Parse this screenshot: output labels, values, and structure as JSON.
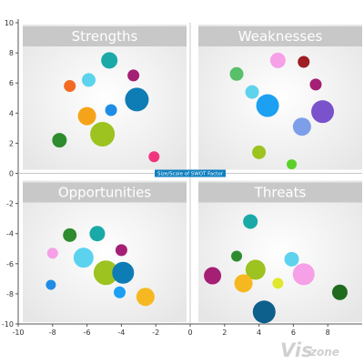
{
  "chart_data": {
    "type": "bubble",
    "center_label": "Size/Scale of SWOT Factor",
    "x_ticks": [
      -10,
      -8,
      -6,
      -4,
      -2,
      0,
      2,
      4,
      6,
      8
    ],
    "y_ticks": [
      10,
      8,
      6,
      4,
      2,
      0,
      -2,
      -4,
      -6,
      -8,
      -10
    ],
    "xlim": [
      -10,
      10
    ],
    "ylim": [
      -10,
      10
    ],
    "quadrants": [
      {
        "title": "Strengths",
        "bubbles": [
          {
            "x": -4.7,
            "y": 7.5,
            "size": 9,
            "color": "#19aaa8"
          },
          {
            "x": -3.3,
            "y": 6.5,
            "size": 6.5,
            "color": "#a51f75"
          },
          {
            "x": -5.9,
            "y": 6.2,
            "size": 7.5,
            "color": "#5cd3ee"
          },
          {
            "x": -7.0,
            "y": 5.8,
            "size": 6.5,
            "color": "#f26b21"
          },
          {
            "x": -3.1,
            "y": 4.9,
            "size": 13,
            "color": "#0e7cb5"
          },
          {
            "x": -4.6,
            "y": 4.2,
            "size": 6.5,
            "color": "#1f8de6"
          },
          {
            "x": -6.0,
            "y": 3.8,
            "size": 10,
            "color": "#f5a41a"
          },
          {
            "x": -5.1,
            "y": 2.6,
            "size": 13.5,
            "color": "#9cc31f"
          },
          {
            "x": -7.6,
            "y": 2.2,
            "size": 8,
            "color": "#2e8b2e"
          },
          {
            "x": -2.1,
            "y": 1.1,
            "size": 6,
            "color": "#f0357d"
          }
        ]
      },
      {
        "title": "Weaknesses",
        "bubbles": [
          {
            "x": 2.7,
            "y": 6.6,
            "size": 7.5,
            "color": "#58bf6a"
          },
          {
            "x": 5.1,
            "y": 7.5,
            "size": 8.5,
            "color": "#f6a0e8"
          },
          {
            "x": 6.6,
            "y": 7.4,
            "size": 6.5,
            "color": "#9e1d23"
          },
          {
            "x": 3.6,
            "y": 5.4,
            "size": 7.5,
            "color": "#5fd3ee"
          },
          {
            "x": 7.3,
            "y": 5.9,
            "size": 6.5,
            "color": "#a51f75"
          },
          {
            "x": 4.5,
            "y": 4.5,
            "size": 12.5,
            "color": "#1ba0f2"
          },
          {
            "x": 7.7,
            "y": 4.1,
            "size": 12.5,
            "color": "#7a52cc"
          },
          {
            "x": 6.5,
            "y": 3.1,
            "size": 10,
            "color": "#7d9ee8"
          },
          {
            "x": 4.0,
            "y": 1.4,
            "size": 7.5,
            "color": "#9cc31f"
          },
          {
            "x": 5.9,
            "y": 0.6,
            "size": 5.5,
            "color": "#5ad12a"
          }
        ]
      },
      {
        "title": "Opportunities",
        "bubbles": [
          {
            "x": -7.0,
            "y": -4.1,
            "size": 7.5,
            "color": "#2e8b2e"
          },
          {
            "x": -5.4,
            "y": -4.0,
            "size": 8.5,
            "color": "#19aaa8"
          },
          {
            "x": -8.0,
            "y": -5.3,
            "size": 6,
            "color": "#f6a0e8"
          },
          {
            "x": -6.2,
            "y": -5.6,
            "size": 11,
            "color": "#5cd3ee"
          },
          {
            "x": -4.0,
            "y": -5.1,
            "size": 6.5,
            "color": "#a51f75"
          },
          {
            "x": -4.9,
            "y": -6.6,
            "size": 13.5,
            "color": "#9cc31f"
          },
          {
            "x": -3.9,
            "y": -6.6,
            "size": 12,
            "color": "#0e7cb5"
          },
          {
            "x": -8.1,
            "y": -7.4,
            "size": 5.5,
            "color": "#1f8de6"
          },
          {
            "x": -4.1,
            "y": -7.9,
            "size": 6.5,
            "color": "#1ba0f2"
          },
          {
            "x": -2.6,
            "y": -8.2,
            "size": 10,
            "color": "#f5b820"
          }
        ]
      },
      {
        "title": "Threats",
        "bubbles": [
          {
            "x": 3.5,
            "y": -3.2,
            "size": 8,
            "color": "#19aaa8"
          },
          {
            "x": 2.7,
            "y": -5.5,
            "size": 6,
            "color": "#2e8b2e"
          },
          {
            "x": 5.9,
            "y": -5.7,
            "size": 8,
            "color": "#5fd3ee"
          },
          {
            "x": 1.3,
            "y": -6.8,
            "size": 9.5,
            "color": "#a51f75"
          },
          {
            "x": 3.8,
            "y": -6.4,
            "size": 11,
            "color": "#9cc31f"
          },
          {
            "x": 6.6,
            "y": -6.7,
            "size": 12,
            "color": "#f6a0e8"
          },
          {
            "x": 3.1,
            "y": -7.3,
            "size": 10,
            "color": "#f5b820"
          },
          {
            "x": 5.1,
            "y": -7.3,
            "size": 6,
            "color": "#dfe82a"
          },
          {
            "x": 8.7,
            "y": -7.9,
            "size": 8.5,
            "color": "#1f6b1f"
          },
          {
            "x": 4.3,
            "y": -9.2,
            "size": 12.5,
            "color": "#0d5f8c"
          }
        ]
      }
    ]
  },
  "watermark": {
    "text_a": "Vis",
    "text_b": "zone"
  }
}
